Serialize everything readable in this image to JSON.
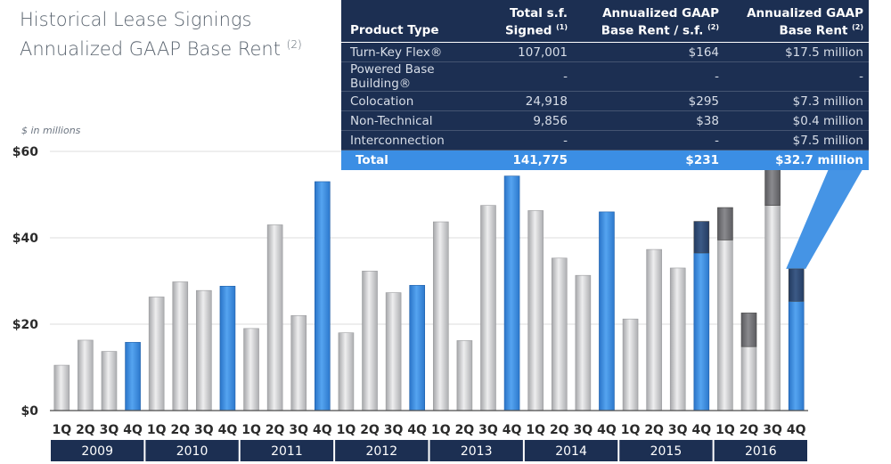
{
  "title_line1": "Historical Lease Signings",
  "title_line2": "Annualized GAAP Base Rent",
  "title_footnote": "(2)",
  "unit_note": "$ in millions",
  "table": {
    "headers": {
      "product": "Product Type",
      "sf": "Total s.f. Signed",
      "sf_note": "(1)",
      "rent_psf": "Annualized GAAP Base Rent / s.f.",
      "rent_psf_note": "(2)",
      "rent": "Annualized GAAP Base Rent",
      "rent_note": "(2)"
    },
    "rows": [
      {
        "product": "Turn-Key Flex®",
        "sf": "107,001",
        "psf": "$164",
        "rent": "$17.5 million"
      },
      {
        "product": "Powered Base Building®",
        "sf": "-",
        "psf": "-",
        "rent": "-"
      },
      {
        "product": "Colocation",
        "sf": "24,918",
        "psf": "$295",
        "rent": "$7.3 million"
      },
      {
        "product": "Non-Technical",
        "sf": "9,856",
        "psf": "$38",
        "rent": "$0.4 million"
      },
      {
        "product": "Interconnection",
        "sf": "-",
        "psf": "-",
        "rent": "$7.5 million"
      }
    ],
    "total": {
      "product": "Total",
      "sf": "141,775",
      "psf": "$231",
      "rent": "$32.7 million"
    }
  },
  "colors": {
    "gray_bar": "#c8c9cb",
    "blue_bar": "#3b8ee4",
    "dark_segment": "#6e6e72",
    "dark_blue_segment": "#2c4670",
    "navy": "#1c2f52",
    "callout": "#3b8ee4"
  },
  "chart_data": {
    "type": "bar",
    "stacked": true,
    "ylim": [
      0,
      60
    ],
    "yticks": [
      "$0",
      "$20",
      "$40",
      "$60"
    ],
    "ytick_values": [
      0,
      20,
      40,
      60
    ],
    "grid": true,
    "quarter_labels": [
      "1Q",
      "2Q",
      "3Q",
      "4Q"
    ],
    "years": [
      "2009",
      "2010",
      "2011",
      "2012",
      "2013",
      "2014",
      "2015",
      "2016"
    ],
    "base_values": [
      10.5,
      16.3,
      13.7,
      15.8,
      26.3,
      29.8,
      27.8,
      28.8,
      19.0,
      43.0,
      22.0,
      53.0,
      18.0,
      32.3,
      27.3,
      29.0,
      43.7,
      16.2,
      47.5,
      54.3,
      46.3,
      35.3,
      31.3,
      46.0,
      21.2,
      37.3,
      33.0,
      36.5,
      39.5,
      14.8,
      47.5,
      25.3
    ],
    "extra_values": [
      0,
      0,
      0,
      0,
      0,
      0,
      0,
      0,
      0,
      0,
      0,
      0,
      0,
      0,
      0,
      0,
      0,
      0,
      0,
      0,
      0,
      0,
      0,
      0,
      0,
      0,
      0,
      7.3,
      7.5,
      7.8,
      8.5,
      7.5
    ],
    "highlight_q4": true
  }
}
